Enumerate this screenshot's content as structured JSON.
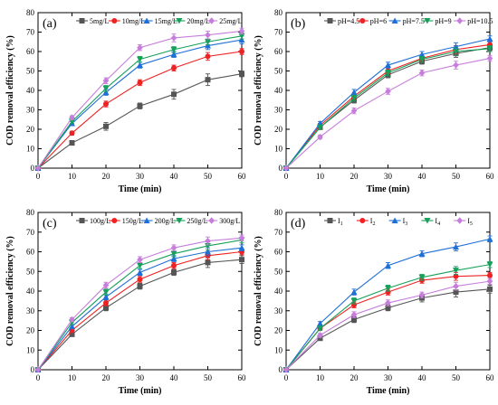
{
  "chart_data": [
    {
      "type": "line",
      "panel_label": "(a)",
      "xlabel": "Time (min)",
      "ylabel": "COD removal efficiency (%)",
      "x": [
        0,
        10,
        20,
        30,
        40,
        50,
        60
      ],
      "xlim": [
        0,
        60
      ],
      "ylim": [
        0,
        80
      ],
      "xticks": [
        0,
        10,
        20,
        30,
        40,
        50,
        60
      ],
      "yticks": [
        0,
        10,
        20,
        30,
        40,
        50,
        60,
        70,
        80
      ],
      "legend": "top",
      "grid": false,
      "series": [
        {
          "name": "5mg/L",
          "color": "#555555",
          "marker": "square",
          "values": [
            0,
            13,
            21.5,
            32,
            38,
            45.5,
            48.5
          ],
          "errors": [
            0,
            1.2,
            2,
            1.5,
            2.5,
            3,
            1.5
          ]
        },
        {
          "name": "10mg/L",
          "color": "#ee2222",
          "marker": "circle",
          "values": [
            0,
            18,
            33,
            44,
            51.5,
            57.5,
            60
          ],
          "errors": [
            0,
            1,
            1.5,
            1.5,
            1.5,
            2,
            1.5
          ]
        },
        {
          "name": "15mg/L",
          "color": "#1f6fd6",
          "marker": "triangle-up",
          "values": [
            0,
            23,
            39,
            53,
            58.5,
            63,
            66
          ],
          "errors": [
            0,
            1,
            1.5,
            1.5,
            1.5,
            2,
            2
          ]
        },
        {
          "name": "20mg/L",
          "color": "#16a05a",
          "marker": "triangle-down",
          "values": [
            0,
            24,
            41,
            56,
            61,
            65,
            68
          ],
          "errors": [
            0,
            1,
            1.5,
            1.5,
            1.5,
            1.5,
            1.5
          ]
        },
        {
          "name": "25mg/L",
          "color": "#c77ddb",
          "marker": "diamond",
          "values": [
            0,
            26,
            45,
            62,
            67,
            68.5,
            70.5
          ],
          "errors": [
            0,
            1,
            1.5,
            1.5,
            2,
            2,
            1.5
          ]
        }
      ]
    },
    {
      "type": "line",
      "panel_label": "(b)",
      "xlabel": "Time (min)",
      "ylabel": "COD removal efficiency (%)",
      "x": [
        0,
        10,
        20,
        30,
        40,
        50,
        60
      ],
      "xlim": [
        0,
        60
      ],
      "ylim": [
        0,
        80
      ],
      "xticks": [
        0,
        10,
        20,
        30,
        40,
        50,
        60
      ],
      "yticks": [
        0,
        10,
        20,
        30,
        40,
        50,
        60,
        70,
        80
      ],
      "legend": "top",
      "grid": false,
      "series": [
        {
          "name": "pH=4.5",
          "color": "#555555",
          "marker": "square",
          "values": [
            0,
            21,
            35,
            48,
            55,
            59,
            62
          ],
          "errors": [
            0,
            1,
            1.5,
            1.5,
            1.5,
            2,
            1.5
          ]
        },
        {
          "name": "pH=6",
          "color": "#ee2222",
          "marker": "circle",
          "values": [
            0,
            22,
            37,
            50,
            56.5,
            61,
            63.5
          ],
          "errors": [
            0,
            1,
            1.5,
            1.5,
            1.5,
            2,
            1.5
          ]
        },
        {
          "name": "pH=7.5",
          "color": "#1f6fd6",
          "marker": "triangle-up",
          "values": [
            0,
            23,
            39,
            53,
            58.5,
            62.5,
            66.5
          ],
          "errors": [
            0,
            1,
            1.5,
            1.5,
            1.5,
            2,
            1.5
          ]
        },
        {
          "name": "pH=9",
          "color": "#16a05a",
          "marker": "triangle-down",
          "values": [
            0,
            21,
            36,
            49,
            56,
            60,
            61.5
          ],
          "errors": [
            0,
            1,
            1.5,
            1.5,
            1.5,
            2,
            1.5
          ]
        },
        {
          "name": "pH=10.5",
          "color": "#c77ddb",
          "marker": "diamond",
          "values": [
            0,
            16,
            29.5,
            39.5,
            49,
            53,
            56.5
          ],
          "errors": [
            0,
            1,
            1.5,
            1.5,
            1.5,
            2,
            1.5
          ]
        }
      ]
    },
    {
      "type": "line",
      "panel_label": "(c)",
      "xlabel": "Time (min)",
      "ylabel": "COD removal efficiency (%)",
      "x": [
        0,
        10,
        20,
        30,
        40,
        50,
        60
      ],
      "xlim": [
        0,
        60
      ],
      "ylim": [
        0,
        80
      ],
      "xticks": [
        0,
        10,
        20,
        30,
        40,
        50,
        60
      ],
      "yticks": [
        0,
        10,
        20,
        30,
        40,
        50,
        60,
        70,
        80
      ],
      "legend": "top",
      "grid": false,
      "series": [
        {
          "name": "100g/L",
          "color": "#555555",
          "marker": "square",
          "values": [
            0,
            18,
            31.5,
            42.5,
            49.5,
            54.5,
            56
          ],
          "errors": [
            0,
            1,
            1.5,
            1.5,
            1.5,
            2.5,
            2
          ]
        },
        {
          "name": "150g/L",
          "color": "#ee2222",
          "marker": "circle",
          "values": [
            0,
            20,
            34,
            46,
            53,
            58,
            60
          ],
          "errors": [
            0,
            1,
            1.5,
            1.5,
            1.5,
            2,
            1.5
          ]
        },
        {
          "name": "200g/L",
          "color": "#1f6fd6",
          "marker": "triangle-up",
          "values": [
            0,
            22,
            37,
            49.5,
            56.5,
            60,
            62
          ],
          "errors": [
            0,
            1,
            1.5,
            1.5,
            1.5,
            2,
            1.5
          ]
        },
        {
          "name": "250g/L",
          "color": "#16a05a",
          "marker": "triangle-down",
          "values": [
            0,
            24,
            39.5,
            53,
            59,
            63,
            66
          ],
          "errors": [
            0,
            1,
            1.5,
            1.5,
            1.5,
            2,
            1.5
          ]
        },
        {
          "name": "300g/L",
          "color": "#c77ddb",
          "marker": "diamond",
          "values": [
            0,
            25.5,
            43,
            56,
            62,
            65.5,
            67
          ],
          "errors": [
            0,
            1,
            1.5,
            1.5,
            1.5,
            2,
            1.5
          ]
        }
      ]
    },
    {
      "type": "line",
      "panel_label": "(d)",
      "xlabel": "Time (min)",
      "ylabel": "COD removal efficiency (%)",
      "x": [
        0,
        10,
        20,
        30,
        40,
        50,
        60
      ],
      "xlim": [
        0,
        60
      ],
      "ylim": [
        0,
        80
      ],
      "xticks": [
        0,
        10,
        20,
        30,
        40,
        50,
        60
      ],
      "yticks": [
        0,
        10,
        20,
        30,
        40,
        50,
        60,
        70,
        80
      ],
      "legend": "top",
      "grid": false,
      "series": [
        {
          "name": "I",
          "subscript": "1",
          "color": "#555555",
          "marker": "square",
          "values": [
            0,
            16,
            25.5,
            31.5,
            36.5,
            39.5,
            41
          ],
          "errors": [
            0,
            1,
            1.5,
            1.5,
            2,
            2.5,
            2
          ]
        },
        {
          "name": "I",
          "subscript": "2",
          "color": "#ee2222",
          "marker": "circle",
          "values": [
            0,
            21,
            33,
            39.5,
            45.5,
            47.5,
            48
          ],
          "errors": [
            0,
            1,
            1.5,
            1.5,
            1.5,
            2,
            1.5
          ]
        },
        {
          "name": "I",
          "subscript": "3",
          "color": "#1f6fd6",
          "marker": "triangle-up",
          "values": [
            0,
            23.5,
            39.5,
            53,
            59,
            62.5,
            66.5
          ],
          "errors": [
            0,
            1,
            1.5,
            1.5,
            1.5,
            2,
            1.5
          ]
        },
        {
          "name": "I",
          "subscript": "4",
          "color": "#16a05a",
          "marker": "triangle-down",
          "values": [
            0,
            21,
            35,
            41.5,
            47,
            50.5,
            53.5
          ],
          "errors": [
            0,
            1,
            1.5,
            1.5,
            1.5,
            2,
            1.5
          ]
        },
        {
          "name": "I",
          "subscript": "5",
          "color": "#c77ddb",
          "marker": "diamond",
          "values": [
            0,
            17.5,
            28,
            34,
            38,
            42.5,
            45
          ],
          "errors": [
            0,
            1,
            1.5,
            1.5,
            1.5,
            2,
            1.5
          ]
        }
      ]
    }
  ]
}
